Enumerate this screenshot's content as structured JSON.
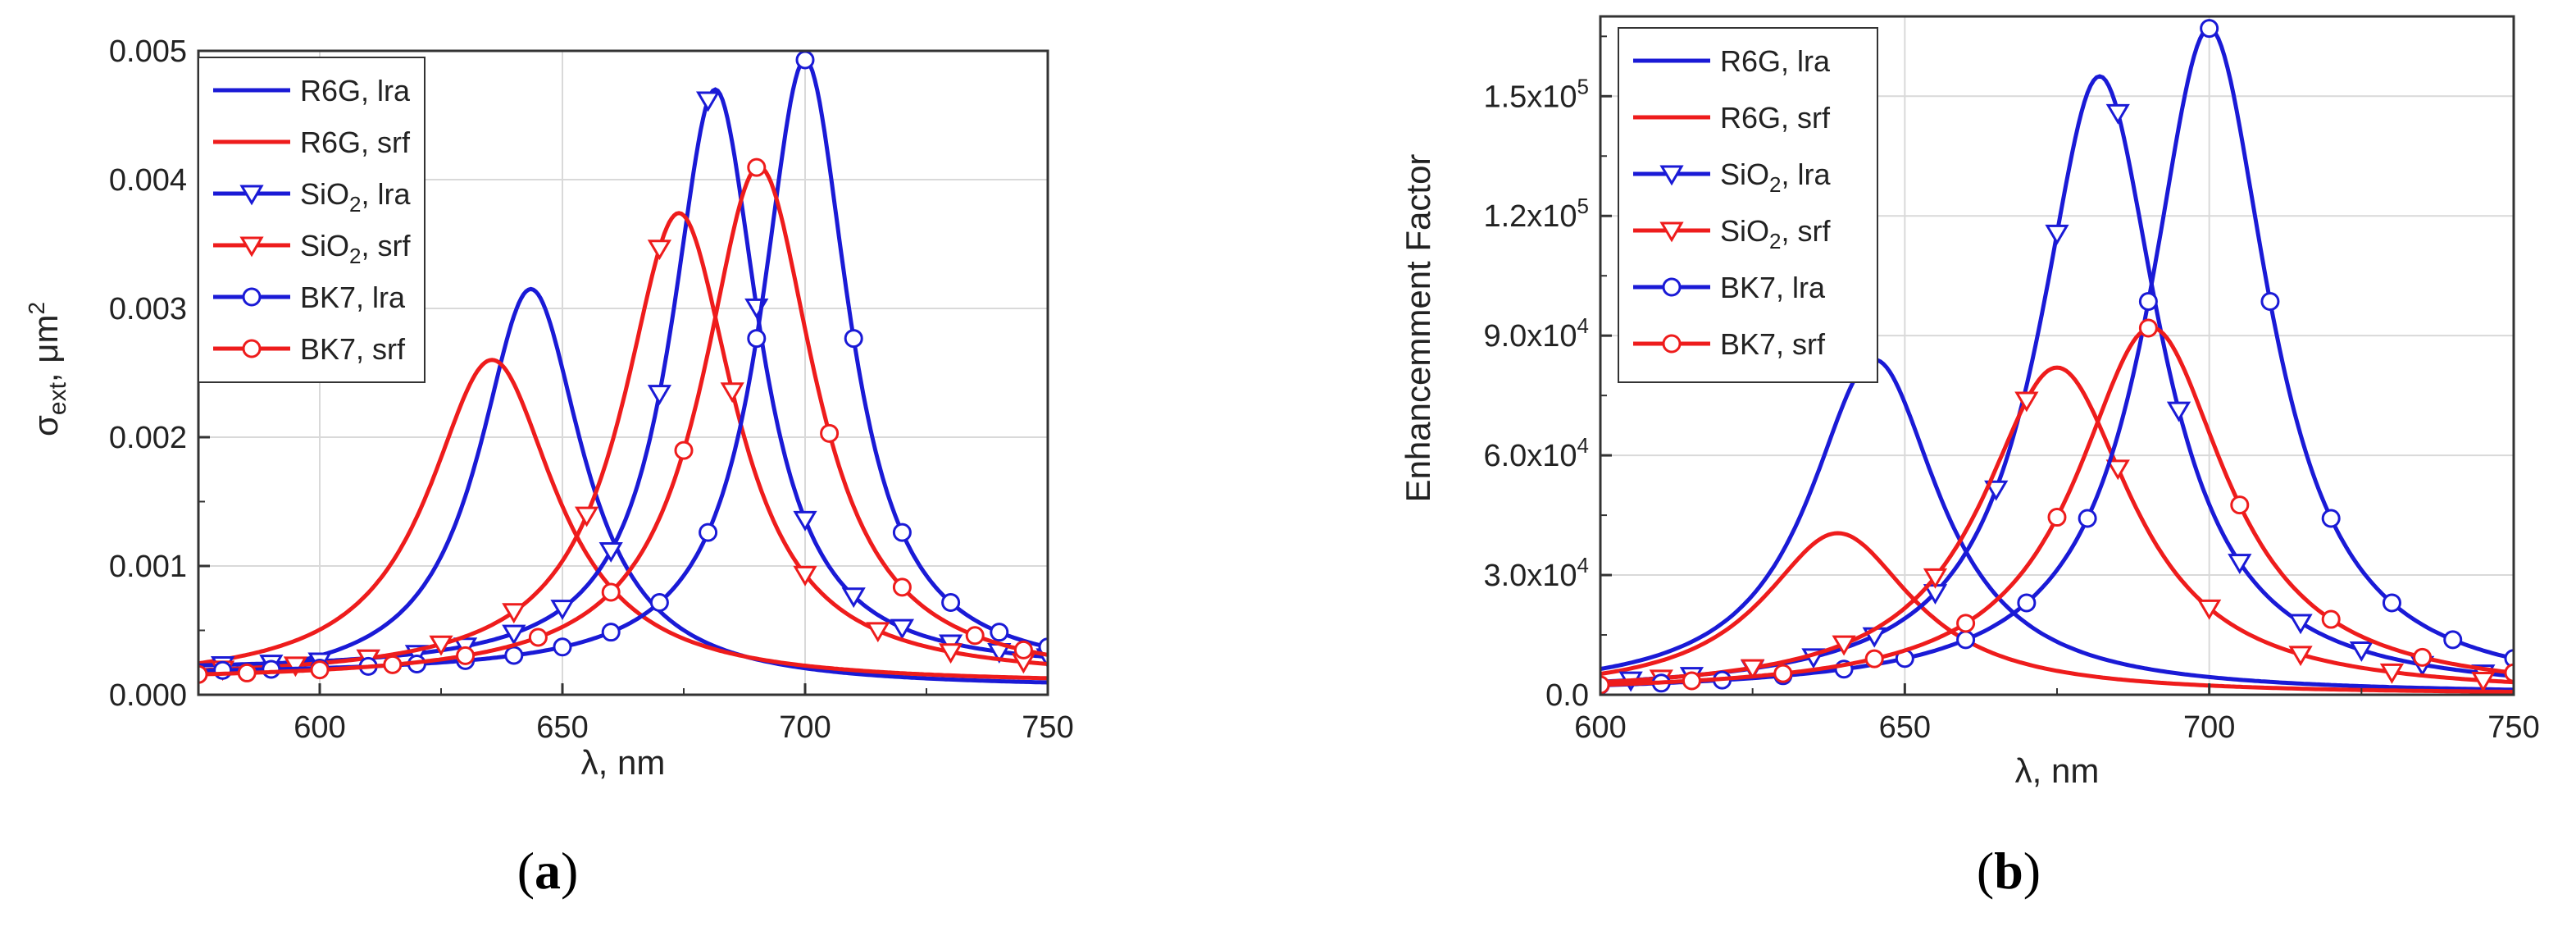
{
  "colors": {
    "blue": "#1a1ad6",
    "red": "#ee1c1c",
    "grid": "#d9d9d9",
    "frame": "#333333"
  },
  "chart_data": [
    {
      "type": "line",
      "panel_label": "a",
      "title": "",
      "xlabel": "λ, nm",
      "ylabel": {
        "main": "σ",
        "sub": "ext",
        "units": ", μm",
        "sup": "2"
      },
      "xlim": [
        575,
        750
      ],
      "ylim": [
        0,
        0.005
      ],
      "xticks": [
        600,
        650,
        700,
        750
      ],
      "yticks": [
        0.0,
        0.001,
        0.002,
        0.003,
        0.004,
        0.005
      ],
      "ytick_labels": [
        "0.000",
        "0.001",
        "0.002",
        "0.003",
        "0.004",
        "0.005"
      ],
      "grid": true,
      "legend_position": "top-left",
      "series": [
        {
          "name": "R6G, lra",
          "label_main": "R6G, lra",
          "color": "#1a1ad6",
          "marker": "none",
          "lorentz": {
            "center": 643.5,
            "peak": 0.0031,
            "width": 13,
            "base": 5e-05
          }
        },
        {
          "name": "R6G, srf",
          "label_main": "R6G, srf",
          "color": "#ee1c1c",
          "marker": "none",
          "lorentz": {
            "center": 635.5,
            "peak": 0.00252,
            "width": 16,
            "base": 8e-05
          }
        },
        {
          "name": "SiO2, lra",
          "label_main": "SiO",
          "label_sub": "2",
          "label_tail": ", lra",
          "color": "#1a1ad6",
          "marker": "triangle",
          "marker_x": [
            580,
            590,
            600,
            610,
            620,
            630,
            640,
            650,
            660,
            670,
            680,
            690,
            700,
            710,
            720,
            730,
            740,
            750
          ],
          "lorentz": {
            "center": 681.5,
            "peak": 0.00452,
            "width": 11,
            "base": 0.00018
          }
        },
        {
          "name": "SiO2, srf",
          "label_main": "SiO",
          "label_sub": "2",
          "label_tail": ", srf",
          "color": "#ee1c1c",
          "marker": "triangle",
          "marker_x": [
            580,
            595,
            610,
            625,
            640,
            655,
            670,
            685,
            700,
            715,
            730,
            745
          ],
          "lorentz": {
            "center": 674,
            "peak": 0.00362,
            "width": 14,
            "base": 0.00012
          }
        },
        {
          "name": "BK7, lra",
          "label_main": "BK7, lra",
          "color": "#1a1ad6",
          "marker": "circle",
          "marker_x": [
            580,
            590,
            600,
            610,
            620,
            630,
            640,
            650,
            660,
            670,
            680,
            690,
            700,
            710,
            720,
            730,
            740,
            750
          ],
          "lorentz": {
            "center": 700,
            "peak": 0.00478,
            "width": 11,
            "base": 0.00015
          }
        },
        {
          "name": "BK7, srf",
          "label_main": "BK7, srf",
          "color": "#ee1c1c",
          "marker": "circle",
          "marker_x": [
            575,
            585,
            600,
            615,
            630,
            645,
            660,
            675,
            690,
            705,
            720,
            735,
            745
          ],
          "lorentz": {
            "center": 690.5,
            "peak": 0.004,
            "width": 14,
            "base": 0.0001
          }
        }
      ]
    },
    {
      "type": "line",
      "panel_label": "b",
      "title": "",
      "xlabel": "λ, nm",
      "ylabel": {
        "main": "Enhancemment Factor"
      },
      "xlim": [
        600,
        750
      ],
      "ylim": [
        0,
        170000
      ],
      "xticks": [
        600,
        650,
        700,
        750
      ],
      "yticks": [
        0,
        30000,
        60000,
        90000,
        120000,
        150000
      ],
      "ytick_labels": [
        {
          "base": "0.0",
          "exp": ""
        },
        {
          "base": "3.0x10",
          "exp": "4"
        },
        {
          "base": "6.0x10",
          "exp": "4"
        },
        {
          "base": "9.0x10",
          "exp": "4"
        },
        {
          "base": "1.2x10",
          "exp": "5"
        },
        {
          "base": "1.5x10",
          "exp": "5"
        }
      ],
      "grid": true,
      "legend_position": "top-left",
      "series": [
        {
          "name": "R6G, lra",
          "label_main": "R6G, lra",
          "color": "#1a1ad6",
          "marker": "none",
          "lorentz": {
            "center": 645,
            "peak": 84000,
            "width": 13,
            "base": 0
          }
        },
        {
          "name": "R6G, srf",
          "label_main": "R6G, srf",
          "color": "#ee1c1c",
          "marker": "none",
          "lorentz": {
            "center": 639,
            "peak": 40500,
            "width": 15,
            "base": 0
          }
        },
        {
          "name": "SiO2, lra",
          "label_main": "SiO",
          "label_sub": "2",
          "label_tail": ", lra",
          "color": "#1a1ad6",
          "marker": "triangle",
          "marker_x": [
            605,
            615,
            625,
            635,
            645,
            655,
            665,
            675,
            685,
            695,
            705,
            715,
            725,
            735,
            745
          ],
          "lorentz": {
            "center": 682,
            "peak": 155000,
            "width": 12,
            "base": 0
          }
        },
        {
          "name": "SiO2, srf",
          "label_main": "SiO",
          "label_sub": "2",
          "label_tail": ", srf",
          "color": "#ee1c1c",
          "marker": "triangle",
          "marker_x": [
            610,
            625,
            640,
            655,
            670,
            685,
            700,
            715,
            730,
            745
          ],
          "lorentz": {
            "center": 675,
            "peak": 82000,
            "width": 15,
            "base": 0
          }
        },
        {
          "name": "BK7, lra",
          "label_main": "BK7, lra",
          "color": "#1a1ad6",
          "marker": "circle",
          "marker_x": [
            600,
            610,
            620,
            630,
            640,
            650,
            660,
            670,
            680,
            690,
            700,
            710,
            720,
            730,
            740,
            750
          ],
          "lorentz": {
            "center": 700,
            "peak": 167000,
            "width": 12,
            "base": 0
          }
        },
        {
          "name": "BK7, srf",
          "label_main": "BK7, srf",
          "color": "#ee1c1c",
          "marker": "circle",
          "marker_x": [
            600,
            615,
            630,
            645,
            660,
            675,
            690,
            705,
            720,
            735,
            750
          ],
          "lorentz": {
            "center": 690.5,
            "peak": 92000,
            "width": 15,
            "base": 0
          }
        }
      ]
    }
  ]
}
